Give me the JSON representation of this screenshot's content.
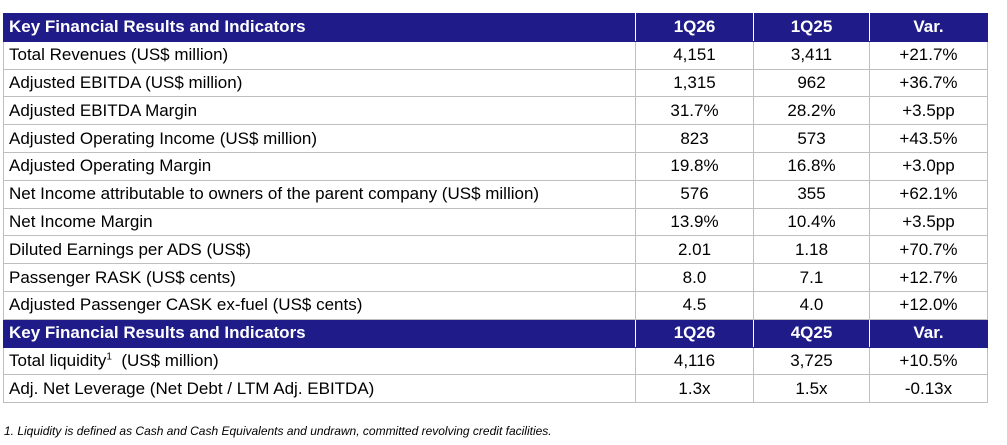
{
  "section1": {
    "header": [
      "Key Financial Results and Indicators",
      "1Q26",
      "1Q25",
      "Var."
    ],
    "rows": [
      [
        "Total Revenues (US$ million)",
        "4,151",
        "3,411",
        "+21.7%"
      ],
      [
        "Adjusted EBITDA (US$ million)",
        "1,315",
        "962",
        "+36.7%"
      ],
      [
        "Adjusted EBITDA Margin",
        "31.7%",
        "28.2%",
        "+3.5pp"
      ],
      [
        "Adjusted Operating Income (US$ million)",
        "823",
        "573",
        "+43.5%"
      ],
      [
        "Adjusted Operating Margin",
        "19.8%",
        "16.8%",
        "+3.0pp"
      ],
      [
        "Net Income attributable to owners of the parent company (US$ million)",
        "576",
        "355",
        "+62.1%"
      ],
      [
        "Net Income Margin",
        "13.9%",
        "10.4%",
        "+3.5pp"
      ],
      [
        "Diluted Earnings per ADS (US$)",
        "2.01",
        "1.18",
        "+70.7%"
      ],
      [
        "Passenger RASK (US$ cents)",
        "8.0",
        "7.1",
        "+12.7%"
      ],
      [
        "Adjusted Passenger CASK ex-fuel (US$ cents)",
        "4.5",
        "4.0",
        "+12.0%"
      ]
    ]
  },
  "section2": {
    "header": [
      "Key Financial Results and Indicators",
      "1Q26",
      "4Q25",
      "Var."
    ],
    "liquidity": {
      "label": "Total liquidity",
      "footnote_mark": "1",
      "unit": "  (US$ million)",
      "values": [
        "4,116",
        "3,725",
        "+10.5%"
      ]
    },
    "leverage": [
      "Adj. Net Leverage (Net Debt / LTM Adj. EBITDA)",
      "1.3x",
      "1.5x",
      "-0.13x"
    ]
  },
  "footnote": "1. Liquidity is defined as Cash and Cash Equivalents and undrawn, committed revolving credit facilities.",
  "colors": {
    "header_bg": "#1f1c8a",
    "header_text": "#ffffff",
    "border": "#bfbfbf"
  }
}
